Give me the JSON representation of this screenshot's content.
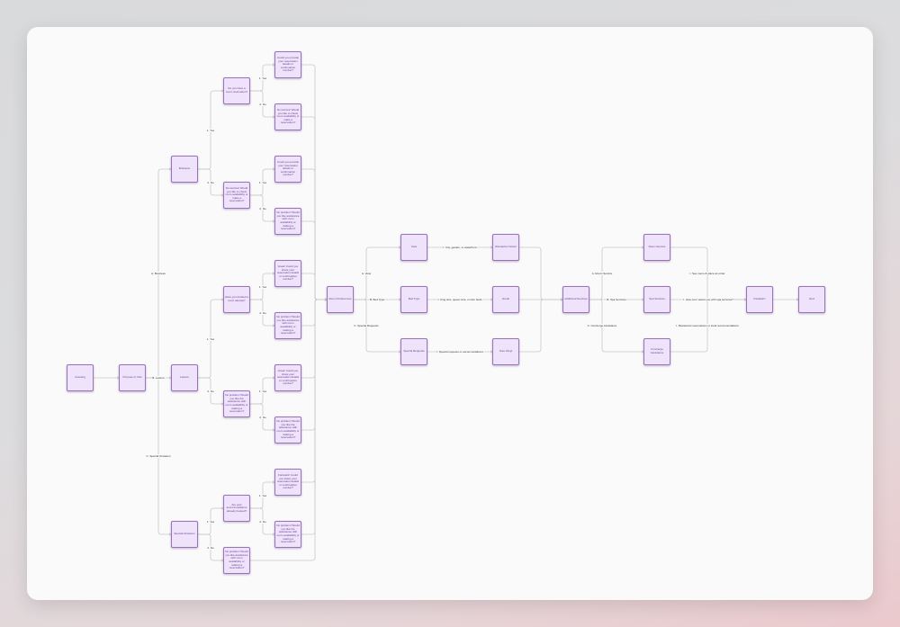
{
  "colors": {
    "node_fill": "#efe2fb",
    "node_border": "#9a72b8",
    "node_text": "#6b3f8f",
    "edge": "#c8c8c8"
  },
  "nodes": [
    {
      "id": "greeting",
      "text": "Greeting"
    },
    {
      "id": "purpose",
      "text": "Purpose of Visit"
    },
    {
      "id": "business",
      "text": "Business"
    },
    {
      "id": "leisure",
      "text": "Leisure"
    },
    {
      "id": "special",
      "text": "Special Occasion"
    },
    {
      "id": "b_q",
      "text": "Do you have a room reservation?"
    },
    {
      "id": "b_no",
      "text": "No worries! Would you like to check room availability or make a reservation?"
    },
    {
      "id": "l_q",
      "text": "Have you booked a room already?"
    },
    {
      "id": "l_no",
      "text": "No problem! Would you like the assistance with room availability or making a reservation?"
    },
    {
      "id": "s_q",
      "text": "Are your accommodations already booked?"
    },
    {
      "id": "s_no",
      "text": "No problem! Would you like assistance with room availability or making a reservation?"
    },
    {
      "id": "c1",
      "text": "Could you provide your reservation details or confirmation number?"
    },
    {
      "id": "c2",
      "text": "No worries! Would you like to check room availability or make a reservation?"
    },
    {
      "id": "c3",
      "text": "Could you provide your reservation details or confirmation number?"
    },
    {
      "id": "c4",
      "text": "No problem! Would you like assistance with room availability or making a reservation?"
    },
    {
      "id": "c5",
      "text": "Great! Could you share your reservation details or confirmation number?"
    },
    {
      "id": "c6",
      "text": "No problem! Would you like assistance with room availability or making a reservation?"
    },
    {
      "id": "c7",
      "text": "Great! Could you share your reservation details or confirmation number?"
    },
    {
      "id": "c8",
      "text": "No problem! Would you like the assistance with room availability or making a reservation?"
    },
    {
      "id": "c9",
      "text": "Fantastic! Could you share your reservation details or confirmation number?"
    },
    {
      "id": "c10",
      "text": "No problem! Would you like the assistance with room availability or making a reservation?"
    },
    {
      "id": "roompref",
      "text": "Room Preferences"
    },
    {
      "id": "view",
      "text": "View"
    },
    {
      "id": "bed",
      "text": "Bed Type"
    },
    {
      "id": "sreq",
      "text": "Special Requests"
    },
    {
      "id": "wonderful",
      "text": "Wonderful choice!"
    },
    {
      "id": "great",
      "text": "Great!"
    },
    {
      "id": "sure",
      "text": "Sure thing!"
    },
    {
      "id": "addl",
      "text": "Additional Services"
    },
    {
      "id": "roomsvc",
      "text": "Room Service"
    },
    {
      "id": "spa",
      "text": "Spa Services"
    },
    {
      "id": "concierge",
      "text": "Concierge Assistance"
    },
    {
      "id": "fantastic",
      "text": "Fantastic!"
    },
    {
      "id": "end",
      "text": "End"
    }
  ],
  "edge_labels": {
    "a_business": "A. Business",
    "b_leisure": "B. Leisure",
    "c_special": "C. Special Occasion",
    "yes": "1. Yes",
    "no": "2. No",
    "a_view": "A. View",
    "b_bed": "B. Bed Type",
    "c_sreq": "C. Special Requests",
    "i_view": "I. City, garden, or waterfront",
    "i_bed": "I. King size, queen size, or twin beds",
    "i_sreq": "I. Special requests or accommodations",
    "a_room": "A. Room Service",
    "b_spa": "B. Spa Services",
    "c_conc": "C. Concierge Assistance",
    "i_room": "I. See menu & place an order",
    "i_spa": "I. How can I assist you with spa services?",
    "i_conc": "I. Restaurant reservations or local recommendations"
  }
}
